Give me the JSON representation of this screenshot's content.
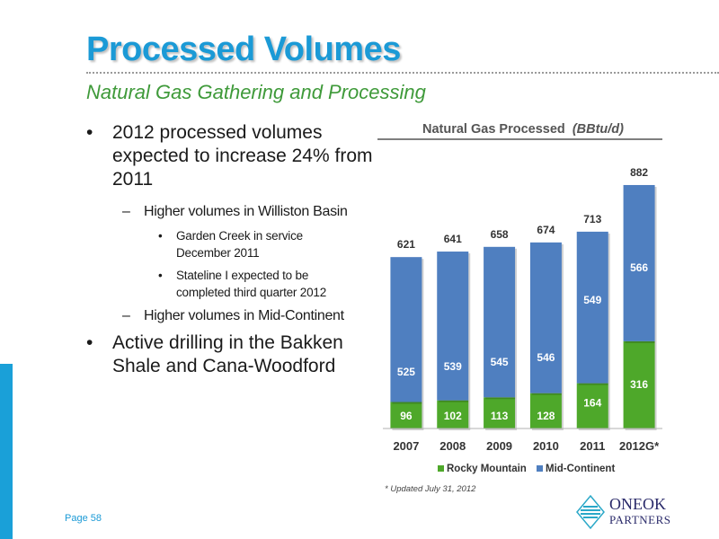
{
  "slide": {
    "title": "Processed Volumes",
    "subtitle": "Natural Gas Gathering and Processing",
    "page": "Page 58",
    "logo_line1": "ONEOK",
    "logo_line2": "PARTNERS"
  },
  "bullets": {
    "b1": "2012 processed volumes expected to increase 24% from 2011",
    "b1_sub1": "Higher volumes in Williston Basin",
    "b1_sub1_a": "Garden Creek in service December 2011",
    "b1_sub1_b": "Stateline I expected to be completed third quarter 2012",
    "b1_sub2": "Higher volumes in Mid-Continent",
    "b2": "Active drilling in the Bakken Shale and Cana-Woodford"
  },
  "chart_data": {
    "type": "bar",
    "stacked": true,
    "title": "Natural Gas Processed",
    "title_unit": "(BBtu/d)",
    "categories": [
      "2007",
      "2008",
      "2009",
      "2010",
      "2011",
      "2012G*"
    ],
    "series": [
      {
        "name": "Rocky Mountain",
        "color": "#4ea82a",
        "values": [
          96,
          102,
          113,
          128,
          164,
          316
        ]
      },
      {
        "name": "Mid-Continent",
        "color": "#4f7fc0",
        "values": [
          525,
          539,
          545,
          546,
          549,
          566
        ]
      }
    ],
    "totals": [
      621,
      641,
      658,
      674,
      713,
      882
    ],
    "ylim": [
      0,
      960
    ],
    "grid": false,
    "legend": "bottom",
    "footnote": "* Updated July 31, 2012"
  }
}
